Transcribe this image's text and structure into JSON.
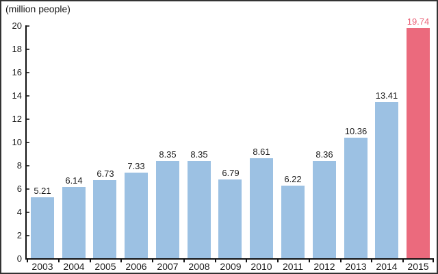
{
  "chart_data": {
    "type": "bar",
    "title": "(million people)",
    "categories": [
      "2003",
      "2004",
      "2005",
      "2006",
      "2007",
      "2008",
      "2009",
      "2010",
      "2011",
      "2012",
      "2013",
      "2014",
      "2015"
    ],
    "values": [
      5.21,
      6.14,
      6.73,
      7.33,
      8.35,
      8.35,
      6.79,
      8.61,
      6.22,
      8.36,
      10.36,
      13.41,
      19.74
    ],
    "value_labels": [
      "5.21",
      "6.14",
      "6.73",
      "7.33",
      "8.35",
      "8.35",
      "6.79",
      "8.61",
      "6.22",
      "8.36",
      "10.36",
      "13.41",
      "19.74"
    ],
    "highlight_index": 12,
    "xlabel": "",
    "ylabel": "",
    "ylim": [
      0,
      20
    ],
    "yticks": [
      0,
      2,
      4,
      6,
      8,
      10,
      12,
      14,
      16,
      18,
      20
    ],
    "grid": false,
    "legend": false,
    "colors": {
      "bar_default": "#9cc1e3",
      "bar_highlight": "#eb6a7d",
      "value_label_default": "#1a1a1a",
      "value_label_highlight": "#ea6177",
      "axis": "#111111",
      "frame_border": "#333333",
      "background": "#ffffff"
    }
  }
}
